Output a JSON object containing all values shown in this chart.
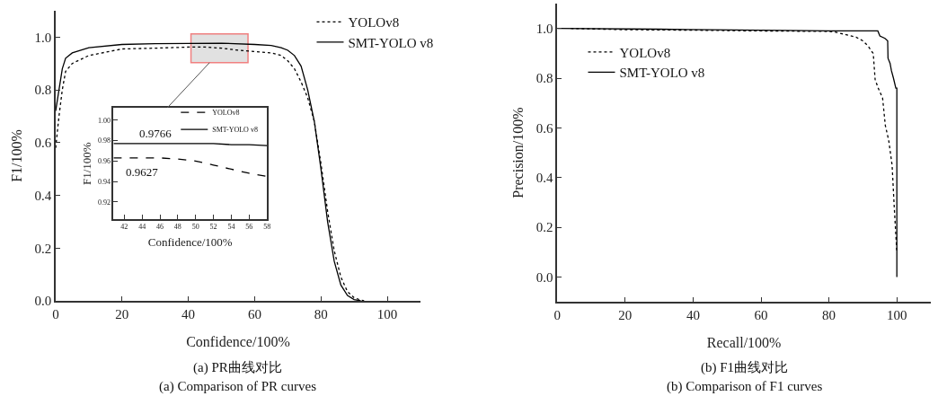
{
  "chart_data": [
    {
      "type": "line",
      "title": "(a) PR曲线对比",
      "subtitle": "(a) Comparison of PR curves",
      "xlabel": "Confidence/100%",
      "ylabel": "F1/100%",
      "xlim": [
        0,
        110
      ],
      "ylim": [
        0,
        1.1
      ],
      "xticks": [
        0,
        20,
        40,
        60,
        80,
        100
      ],
      "yticks": [
        {
          "value": 0,
          "label": "0.0"
        },
        {
          "value": 0.2,
          "label": "0.2"
        },
        {
          "value": 0.4,
          "label": "0.4"
        },
        {
          "value": 0.6,
          "label": "0.6"
        },
        {
          "value": 0.8,
          "label": "0.8"
        },
        {
          "value": 1,
          "label": "1.0"
        }
      ],
      "grid": false,
      "legend": "top right",
      "series": [
        {
          "name": "YOLOv8",
          "color": "#000000",
          "line_style": "dotted",
          "x": [
            0,
            1,
            2,
            3,
            5,
            10,
            20,
            30,
            40,
            45,
            50,
            55,
            60,
            65,
            68,
            70,
            72,
            74,
            76,
            78,
            80,
            82,
            84,
            86,
            88,
            90,
            92,
            93
          ],
          "values": [
            0.58,
            0.7,
            0.8,
            0.87,
            0.9,
            0.93,
            0.955,
            0.958,
            0.962,
            0.962,
            0.958,
            0.95,
            0.945,
            0.94,
            0.93,
            0.91,
            0.88,
            0.83,
            0.77,
            0.68,
            0.52,
            0.34,
            0.19,
            0.09,
            0.035,
            0.012,
            0.003,
            0
          ]
        },
        {
          "name": "SMT-YOLO v8",
          "color": "#000000",
          "line_style": "solid",
          "x": [
            0,
            1,
            2,
            3,
            5,
            10,
            20,
            30,
            40,
            50,
            60,
            65,
            68,
            70,
            72,
            74,
            76,
            78,
            80,
            82,
            84,
            86,
            88,
            90,
            92
          ],
          "values": [
            0.72,
            0.8,
            0.88,
            0.92,
            0.94,
            0.96,
            0.972,
            0.975,
            0.976,
            0.977,
            0.972,
            0.968,
            0.96,
            0.95,
            0.93,
            0.89,
            0.8,
            0.68,
            0.5,
            0.3,
            0.15,
            0.06,
            0.02,
            0.005,
            0
          ]
        }
      ]
    },
    {
      "type": "line",
      "xlabel": "Confidence/100%",
      "ylabel": "F1/100%",
      "xlim": [
        40.8,
        58
      ],
      "ylim": [
        0.903,
        1.012
      ],
      "xticks": [
        42,
        44,
        46,
        48,
        50,
        52,
        54,
        56,
        58
      ],
      "yticks": [
        {
          "value": 0.92,
          "label": "0.92"
        },
        {
          "value": 0.94,
          "label": "0.94"
        },
        {
          "value": 0.96,
          "label": "0.96"
        },
        {
          "value": 0.98,
          "label": "0.98"
        },
        {
          "value": 1,
          "label": "1.00"
        }
      ],
      "grid": false,
      "legend": "top right",
      "annotations": [
        {
          "text": "0.9766",
          "x": 45.5,
          "y": 0.9766
        },
        {
          "text": "0.9627",
          "x": 44,
          "y": 0.9627
        }
      ],
      "series": [
        {
          "name": "YOLOv8",
          "color": "#000000",
          "line_style": "dashed",
          "x": [
            40.8,
            42,
            44,
            46,
            48,
            50,
            52,
            54,
            56,
            58
          ],
          "values": [
            0.963,
            0.963,
            0.963,
            0.963,
            0.962,
            0.96,
            0.956,
            0.952,
            0.948,
            0.945
          ]
        },
        {
          "name": "SMT-YOLO v8",
          "color": "#000000",
          "line_style": "solid",
          "x": [
            40.8,
            42,
            44,
            46,
            48,
            50,
            52,
            54,
            56,
            58
          ],
          "values": [
            0.977,
            0.977,
            0.977,
            0.977,
            0.977,
            0.977,
            0.977,
            0.976,
            0.976,
            0.975
          ]
        }
      ]
    },
    {
      "type": "line",
      "title": "(b) F1曲线对比",
      "subtitle": "(b) Comparison of F1 curves",
      "xlabel": "Recall/100%",
      "ylabel": "Precision/100%",
      "xlim": [
        0,
        110
      ],
      "ylim": [
        -0.1,
        1.1
      ],
      "xticks": [
        0,
        20,
        40,
        60,
        80,
        100
      ],
      "yticks": [
        {
          "value": 0,
          "label": "0.0"
        },
        {
          "value": 0.2,
          "label": "0.2"
        },
        {
          "value": 0.4,
          "label": "0.4"
        },
        {
          "value": 0.6,
          "label": "0.6"
        },
        {
          "value": 0.8,
          "label": "0.8"
        },
        {
          "value": 1,
          "label": "1.0"
        }
      ],
      "grid": false,
      "legend": "top left",
      "series": [
        {
          "name": "YOLOv8",
          "color": "#000000",
          "line_style": "dotted",
          "x": [
            4,
            20,
            40,
            60,
            80,
            82,
            85,
            88,
            90,
            91.5,
            93,
            93.1,
            93.6,
            94.5,
            95.8,
            96.6,
            97.6,
            98.6,
            99.2,
            99.7,
            100
          ],
          "values": [
            1,
            0.995,
            0.993,
            0.99,
            0.988,
            0.985,
            0.975,
            0.965,
            0.95,
            0.93,
            0.9,
            0.89,
            0.795,
            0.76,
            0.72,
            0.61,
            0.55,
            0.45,
            0.29,
            0.17,
            0.1
          ]
        },
        {
          "name": "SMT-YOLO v8",
          "color": "#000000",
          "line_style": "solid",
          "x": [
            0,
            30,
            60,
            80,
            94.4,
            95,
            96.5,
            97.3,
            97.4,
            98,
            98.4,
            99,
            99.7,
            100,
            100
          ],
          "values": [
            1,
            0.997,
            0.993,
            0.99,
            0.99,
            0.97,
            0.96,
            0.95,
            0.88,
            0.86,
            0.83,
            0.8,
            0.76,
            0.76,
            0
          ]
        }
      ]
    }
  ]
}
